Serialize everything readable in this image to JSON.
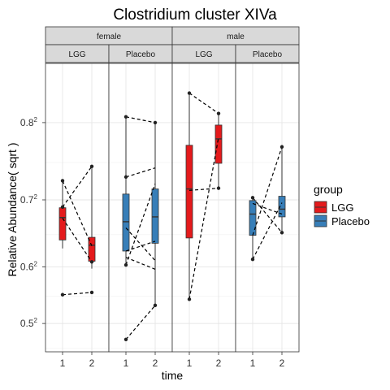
{
  "chart_data": {
    "type": "boxplot",
    "title": "Clostridium cluster XIVa",
    "xlabel": "time",
    "ylabel": "Relative Abundance( sqrt )",
    "x_categories": [
      "1",
      "2"
    ],
    "y_scale": "sqrt",
    "y_ticks": [
      {
        "value": 0.25,
        "base": "0.5",
        "exp": "2"
      },
      {
        "value": 0.36,
        "base": "0.6",
        "exp": "2"
      },
      {
        "value": 0.49,
        "base": "0.7",
        "exp": "2"
      },
      {
        "value": 0.64,
        "base": "0.8",
        "exp": "2"
      }
    ],
    "ylim": [
      0.195,
      0.755
    ],
    "grid": true,
    "legend": {
      "title": "group",
      "placement": "right",
      "items": [
        {
          "label": "LGG",
          "color": "#E41A1C"
        },
        {
          "label": "Placebo",
          "color": "#377EB8"
        }
      ]
    },
    "facets": [
      {
        "sex": "female",
        "group": "LGG",
        "color": "#E41A1C",
        "boxes": [
          {
            "time": "1",
            "whisker_low": 0.629,
            "q1": 0.642,
            "median": 0.675,
            "q3": 0.689,
            "whisker_high": 0.728
          },
          {
            "time": "2",
            "whisker_low": 0.597,
            "q1": 0.609,
            "median": 0.634,
            "q3": 0.646,
            "whisker_high": 0.743
          }
        ],
        "points": [
          {
            "time": "1",
            "value": 0.553
          },
          {
            "time": "1",
            "value": 0.69
          },
          {
            "time": "1",
            "value": 0.726
          },
          {
            "time": "2",
            "value": 0.745
          },
          {
            "time": "2",
            "value": 0.608
          },
          {
            "time": "2",
            "value": 0.557
          }
        ],
        "lines": [
          [
            0.553,
            0.557
          ],
          [
            0.69,
            0.745
          ],
          [
            0.726,
            0.633
          ],
          [
            0.674,
            0.608
          ]
        ]
      },
      {
        "sex": "female",
        "group": "Placebo",
        "color": "#377EB8",
        "boxes": [
          {
            "time": "1",
            "whisker_low": 0.604,
            "q1": 0.625,
            "median": 0.669,
            "q3": 0.708,
            "whisker_high": 0.807
          },
          {
            "time": "2",
            "whisker_low": 0.534,
            "q1": 0.637,
            "median": 0.676,
            "q3": 0.715,
            "whisker_high": 0.8
          }
        ],
        "points": [
          {
            "time": "1",
            "value": 0.468
          },
          {
            "time": "1",
            "value": 0.603
          },
          {
            "time": "1",
            "value": 0.731
          },
          {
            "time": "1",
            "value": 0.807
          },
          {
            "time": "2",
            "value": 0.8
          },
          {
            "time": "2",
            "value": 0.534
          }
        ],
        "lines": [
          [
            0.468,
            0.534
          ],
          [
            0.807,
            0.8
          ],
          [
            0.731,
            0.743
          ],
          [
            0.603,
            0.722
          ],
          [
            0.625,
            0.64
          ],
          [
            0.66,
            0.61
          ],
          [
            0.615,
            0.596
          ]
        ]
      },
      {
        "sex": "male",
        "group": "LGG",
        "color": "#E41A1C",
        "boxes": [
          {
            "time": "1",
            "whisker_low": 0.545,
            "q1": 0.645,
            "median": 0.715,
            "q3": 0.772,
            "whisker_high": 0.835
          },
          {
            "time": "2",
            "whisker_low": 0.716,
            "q1": 0.749,
            "median": 0.78,
            "q3": 0.797,
            "whisker_high": 0.811
          }
        ],
        "points": [
          {
            "time": "1",
            "value": 0.545
          },
          {
            "time": "1",
            "value": 0.835
          },
          {
            "time": "2",
            "value": 0.811
          },
          {
            "time": "2",
            "value": 0.716
          }
        ],
        "lines": [
          [
            0.545,
            0.782
          ],
          [
            0.835,
            0.811
          ],
          [
            0.713,
            0.716
          ]
        ]
      },
      {
        "sex": "male",
        "group": "Placebo",
        "color": "#377EB8",
        "boxes": [
          {
            "time": "1",
            "whisker_low": 0.612,
            "q1": 0.649,
            "median": 0.68,
            "q3": 0.699,
            "whisker_high": 0.705
          },
          {
            "time": "2",
            "whisker_low": 0.653,
            "q1": 0.676,
            "median": 0.687,
            "q3": 0.705,
            "whisker_high": 0.77
          }
        ],
        "points": [
          {
            "time": "1",
            "value": 0.612
          },
          {
            "time": "1",
            "value": 0.703
          },
          {
            "time": "2",
            "value": 0.77
          },
          {
            "time": "2",
            "value": 0.653
          }
        ],
        "lines": [
          [
            0.612,
            0.696
          ],
          [
            0.703,
            0.653
          ],
          [
            0.649,
            0.77
          ],
          [
            0.695,
            0.68
          ]
        ]
      }
    ],
    "strip_top": [
      {
        "label": "female"
      },
      {
        "label": "male"
      }
    ],
    "strip_bottom": [
      {
        "label": "LGG"
      },
      {
        "label": "Placebo"
      },
      {
        "label": "LGG"
      },
      {
        "label": "Placebo"
      }
    ]
  }
}
